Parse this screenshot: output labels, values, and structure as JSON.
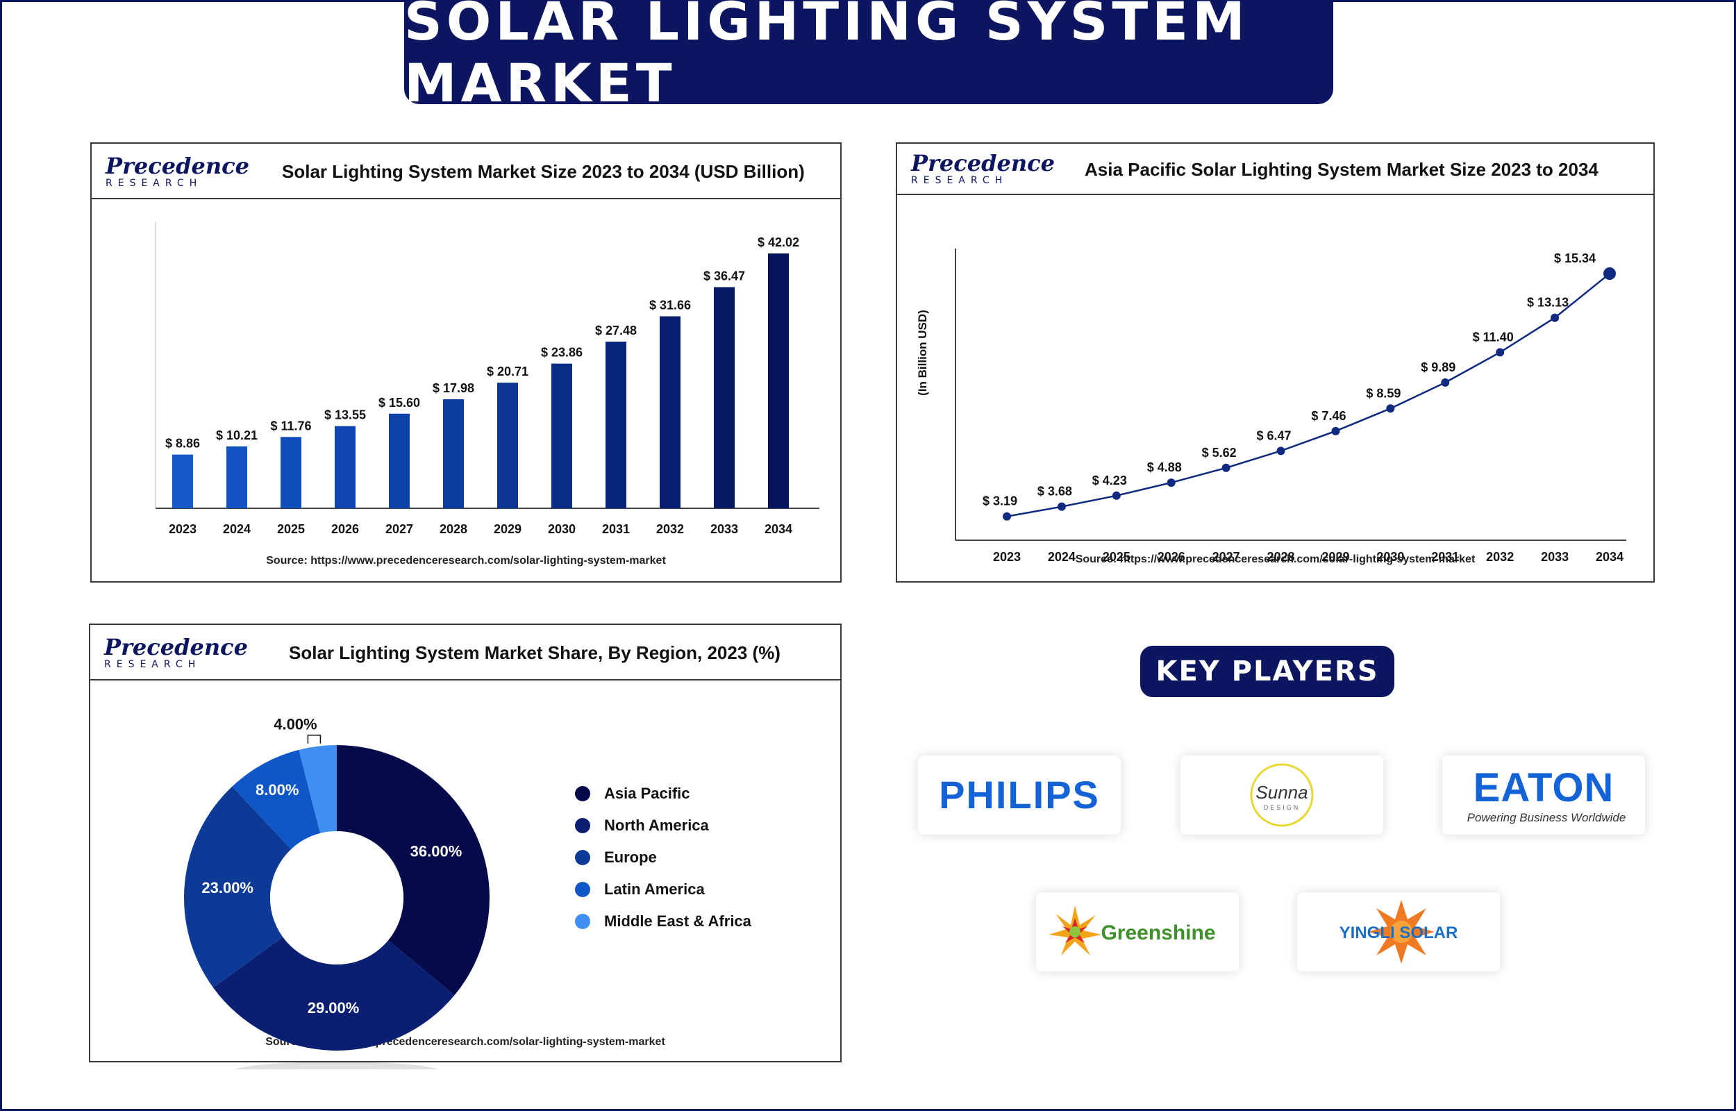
{
  "page": {
    "title": "SOLAR LIGHTING SYSTEM MARKET"
  },
  "brand": {
    "logo_line1": "Precedence",
    "logo_line2": "RESEARCH",
    "navy": "#0b1560"
  },
  "panels": {
    "bar": {
      "title": "Solar Lighting System Market Size 2023 to 2034 (USD Billion)",
      "source": "Source: https://www.precedenceresearch.com/solar-lighting-system-market"
    },
    "line": {
      "title": "Asia Pacific Solar Lighting System Market Size 2023 to 2034",
      "source": "Source: https://www.precedenceresearch.com/solar-lighting-system-market"
    },
    "donut": {
      "title": "Solar Lighting System Market Share, By Region, 2023 (%)",
      "source": "Source: https://www.precedenceresearch.com/solar-lighting-system-market"
    }
  },
  "key_players": {
    "heading": "KEY PLAYERS",
    "players": [
      {
        "name": "PHILIPS"
      },
      {
        "name": "Sunna",
        "tagline": "DESIGN"
      },
      {
        "name": "EATON",
        "tagline": "Powering Business Worldwide"
      },
      {
        "name": "Greenshine"
      },
      {
        "name": "YINGLI SOLAR"
      }
    ]
  },
  "chart_data": [
    {
      "type": "bar",
      "title": "Solar Lighting System Market Size 2023 to 2034 (USD Billion)",
      "categories": [
        "2023",
        "2024",
        "2025",
        "2026",
        "2027",
        "2028",
        "2029",
        "2030",
        "2031",
        "2032",
        "2033",
        "2034"
      ],
      "values": [
        8.86,
        10.21,
        11.76,
        13.55,
        15.6,
        17.98,
        20.71,
        23.86,
        27.48,
        31.66,
        36.47,
        42.02
      ],
      "labels": [
        "$ 8.86",
        "$ 10.21",
        "$ 11.76",
        "$ 13.55",
        "$ 15.60",
        "$ 17.98",
        "$ 20.71",
        "$ 23.86",
        "$ 27.48",
        "$ 31.66",
        "$ 36.47",
        "$ 42.02"
      ],
      "ylim": [
        0,
        45
      ],
      "grid": false,
      "colors": [
        "#1458c9",
        "#1252c2",
        "#114cbb",
        "#0f46b2",
        "#0e41a9",
        "#0c3ba0",
        "#0b3495",
        "#0a2d88",
        "#08267b",
        "#071f6e",
        "#061963",
        "#05145a"
      ]
    },
    {
      "type": "line",
      "title": "Asia Pacific Solar Lighting System Market Size 2023 to 2034",
      "ylabel": "(In Billion USD)",
      "x": [
        "2023",
        "2024",
        "2025",
        "2026",
        "2027",
        "2028",
        "2029",
        "2030",
        "2031",
        "2032",
        "2033",
        "2034"
      ],
      "values": [
        3.19,
        3.68,
        4.23,
        4.88,
        5.62,
        6.47,
        7.46,
        8.59,
        9.89,
        11.4,
        13.13,
        15.34
      ],
      "labels": [
        "$ 3.19",
        "$ 3.68",
        "$ 4.23",
        "$ 4.88",
        "$ 5.62",
        "$ 6.47",
        "$ 7.46",
        "$ 8.59",
        "$ 9.89",
        "$ 11.40",
        "$ 13.13",
        "$ 15.34"
      ],
      "ylim": [
        2,
        16
      ],
      "grid": false,
      "color": "#0f2a80"
    },
    {
      "type": "pie",
      "title": "Solar Lighting System Market Share, By Region, 2023 (%)",
      "legend": "right",
      "slices": [
        {
          "name": "Asia Pacific",
          "value": 36.0,
          "label": "36.00%",
          "color": "#050a4a"
        },
        {
          "name": "North America",
          "value": 29.0,
          "label": "29.00%",
          "color": "#0a1f72"
        },
        {
          "name": "Europe",
          "value": 23.0,
          "label": "23.00%",
          "color": "#0c3a96"
        },
        {
          "name": "Latin America",
          "value": 8.0,
          "label": "8.00%",
          "color": "#0f56c6"
        },
        {
          "name": "Middle East & Africa",
          "value": 4.0,
          "label": "4.00%",
          "color": "#3f8ff0"
        }
      ]
    }
  ]
}
